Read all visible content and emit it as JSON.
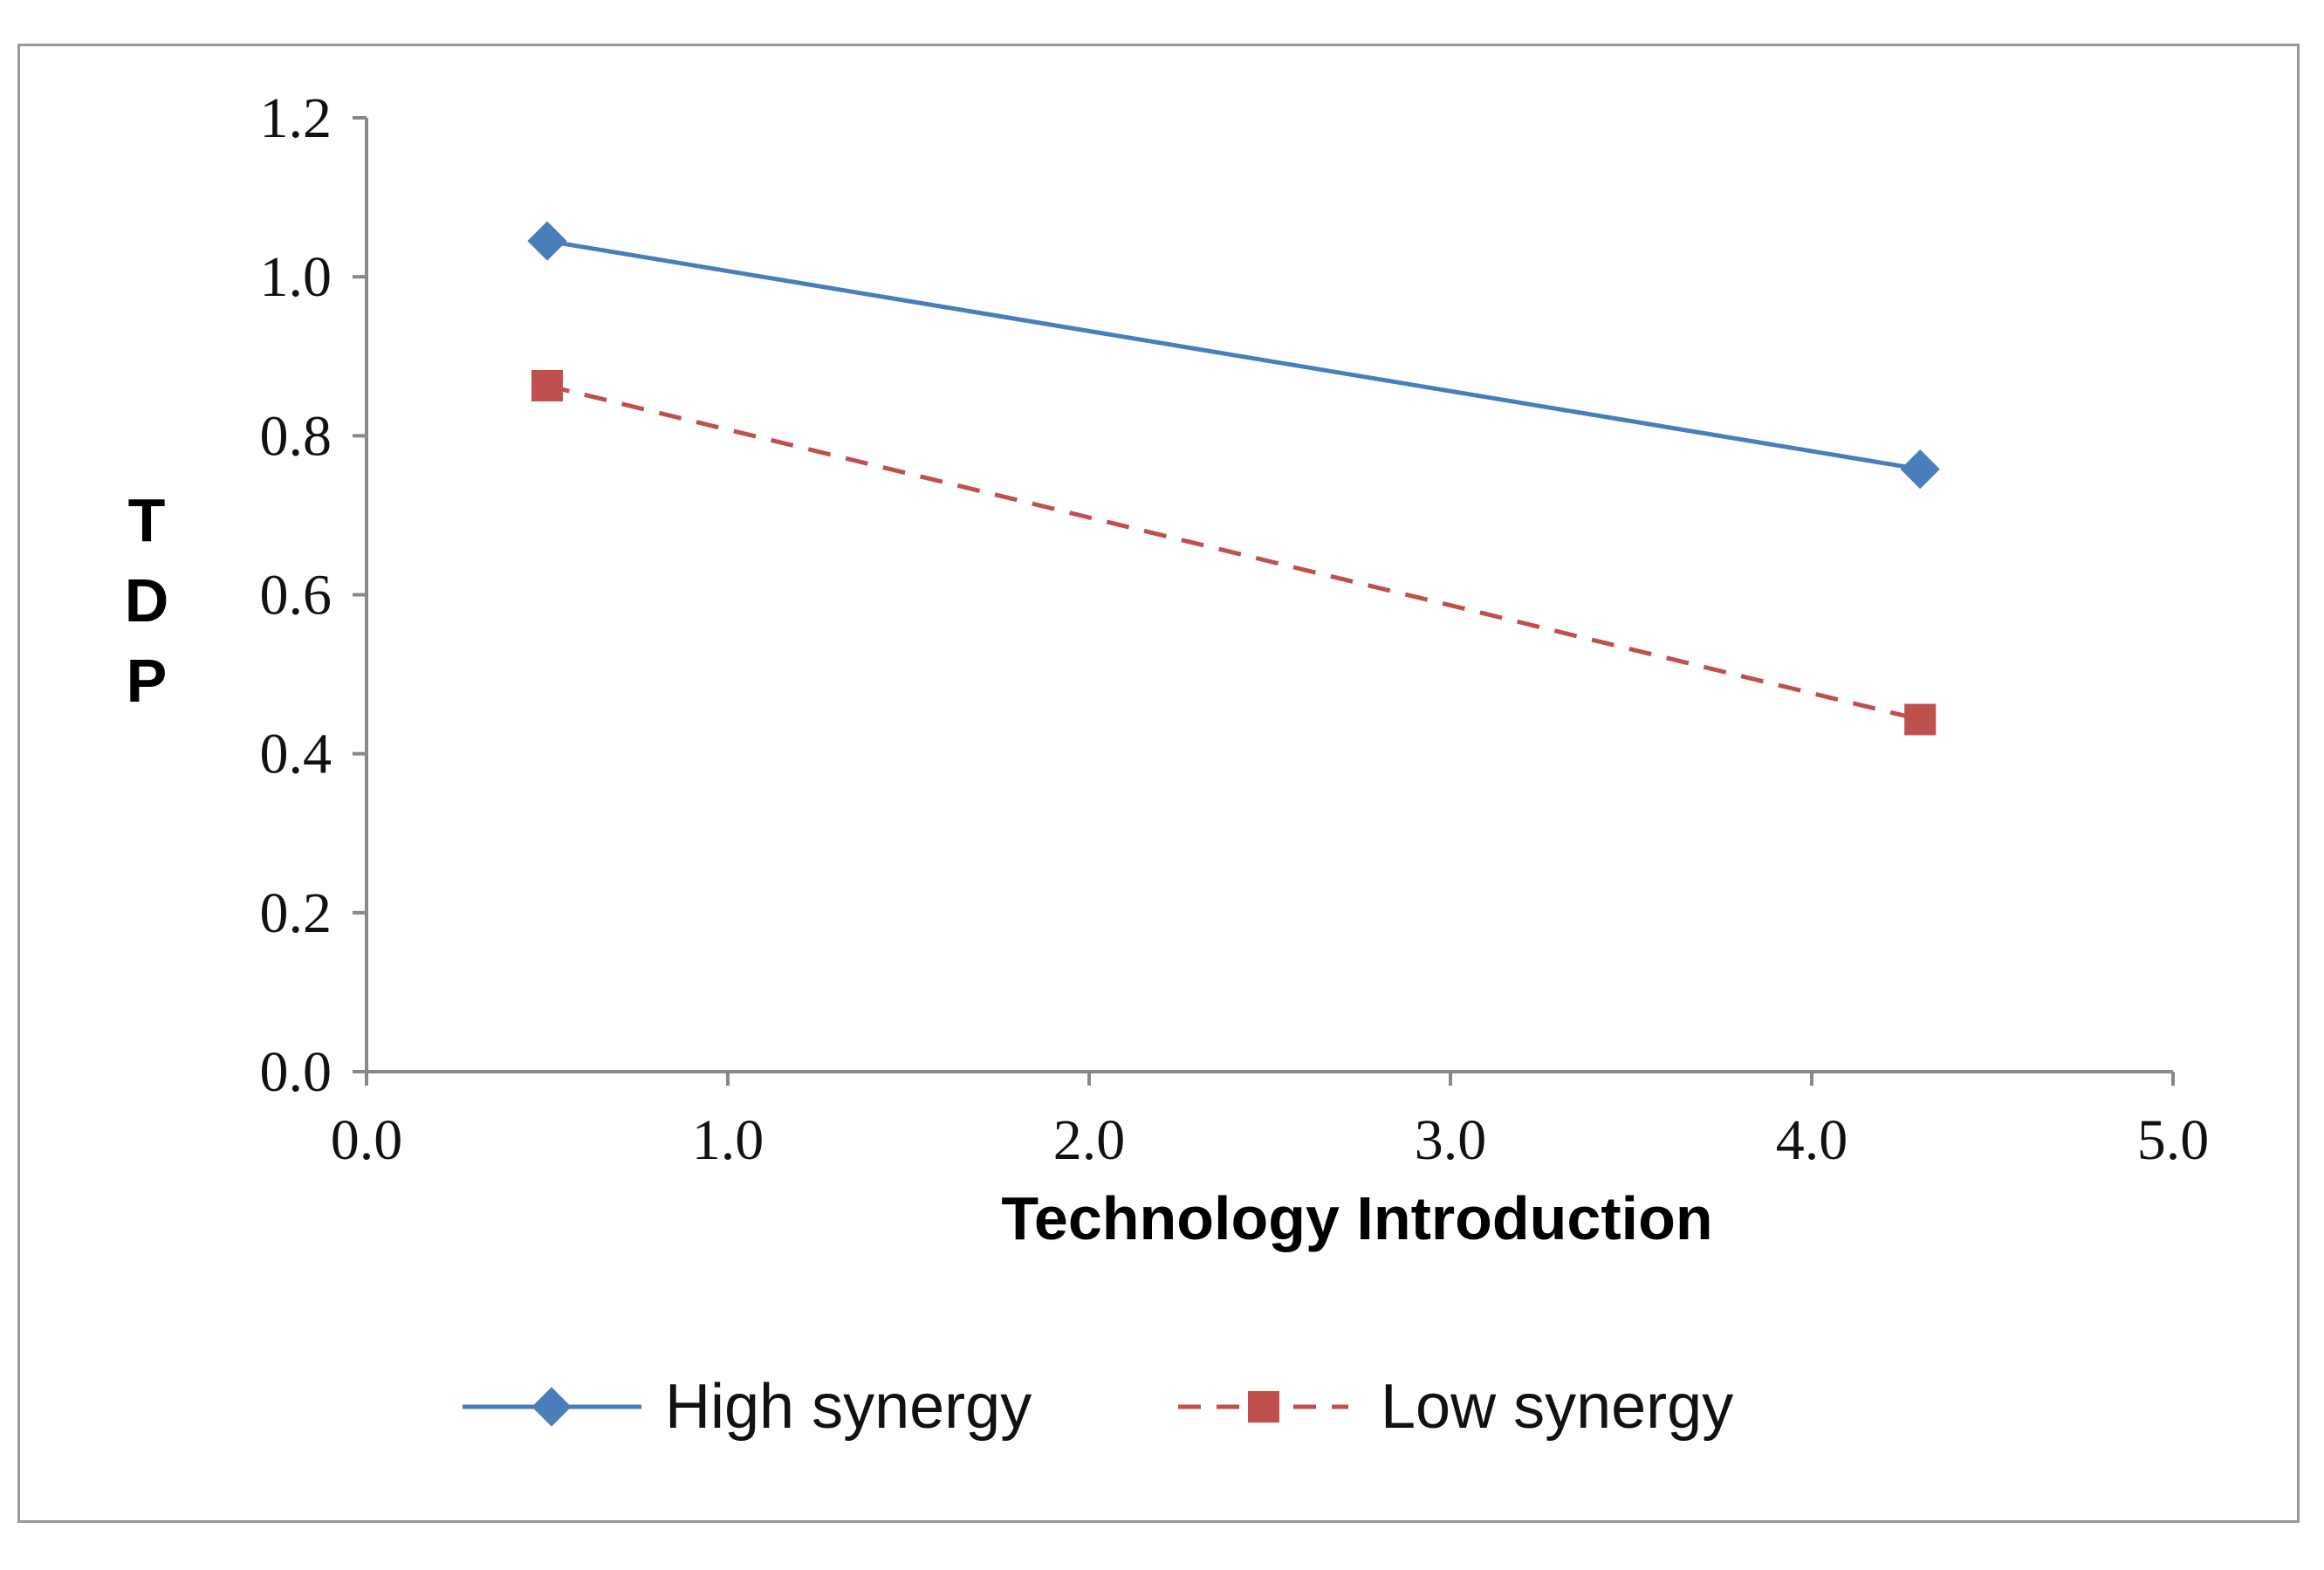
{
  "chart_data": {
    "type": "line",
    "title": "",
    "xlabel": "Technology Introduction",
    "ylabel": "TDP",
    "xlim": [
      0,
      5
    ],
    "ylim": [
      0,
      1.2
    ],
    "x_ticks": [
      "0.0",
      "1.0",
      "2.0",
      "3.0",
      "4.0",
      "5.0"
    ],
    "y_ticks": [
      "0.0",
      "0.2",
      "0.4",
      "0.6",
      "0.8",
      "1.0",
      "1.2"
    ],
    "grid": false,
    "legend_position": "bottom",
    "series": [
      {
        "name": "High synergy",
        "x": [
          0.5,
          4.3
        ],
        "y": [
          1.045,
          0.758
        ],
        "color": "#4a7ebb",
        "line_style": "solid",
        "marker": "diamond"
      },
      {
        "name": "Low synergy",
        "x": [
          0.5,
          4.3
        ],
        "y": [
          0.863,
          0.443
        ],
        "color": "#c0504d",
        "line_style": "dashed",
        "marker": "square"
      }
    ]
  }
}
